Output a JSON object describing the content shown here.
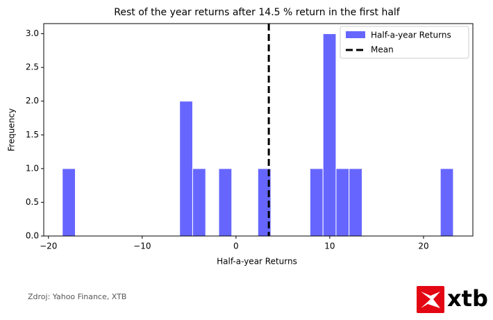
{
  "chart_data": {
    "type": "histogram",
    "title": "Rest of the year returns after 14.5 % return in the first half",
    "x_label": "Half-a-year Returns",
    "y_label": "Frequency",
    "bins": [
      -18.52,
      -17.13,
      -15.74,
      -14.35,
      -12.96,
      -11.57,
      -10.18,
      -8.79,
      -7.4,
      -6.01,
      -4.62,
      -3.23,
      -1.84,
      -0.45,
      0.94,
      2.33,
      3.72,
      5.11,
      6.5,
      7.89,
      9.28,
      10.67,
      12.06,
      13.45,
      14.84,
      16.23,
      17.62,
      19.01,
      20.4,
      21.79,
      23.18
    ],
    "series": [
      {
        "name": "Half-a-year Returns",
        "color": "#6666ff",
        "values": [
          1,
          0,
          0,
          0,
          0,
          0,
          0,
          0,
          0,
          2,
          1,
          0,
          1,
          0,
          0,
          1,
          0,
          0,
          0,
          1,
          3,
          1,
          1,
          0,
          0,
          0,
          0,
          0,
          0,
          1
        ]
      }
    ],
    "mean": 3.5,
    "mean_label": "Mean",
    "mean_color": "#000000",
    "xlim": [
      -20.5,
      25.26
    ],
    "ylim": [
      0,
      3.15
    ],
    "xticks": [
      {
        "value": -20,
        "label": "−20"
      },
      {
        "value": -10,
        "label": "−10"
      },
      0,
      10,
      20
    ],
    "yticks": [
      {
        "value": 0,
        "label": "0.0"
      },
      0.5,
      {
        "value": 1,
        "label": "1.0"
      },
      1.5,
      {
        "value": 2,
        "label": "2.0"
      },
      2.5,
      {
        "value": 3,
        "label": "3.0"
      }
    ],
    "legend": "upper right",
    "source": "Zdroj: Yahoo Finance, XTB",
    "logo_text": "xtb"
  }
}
